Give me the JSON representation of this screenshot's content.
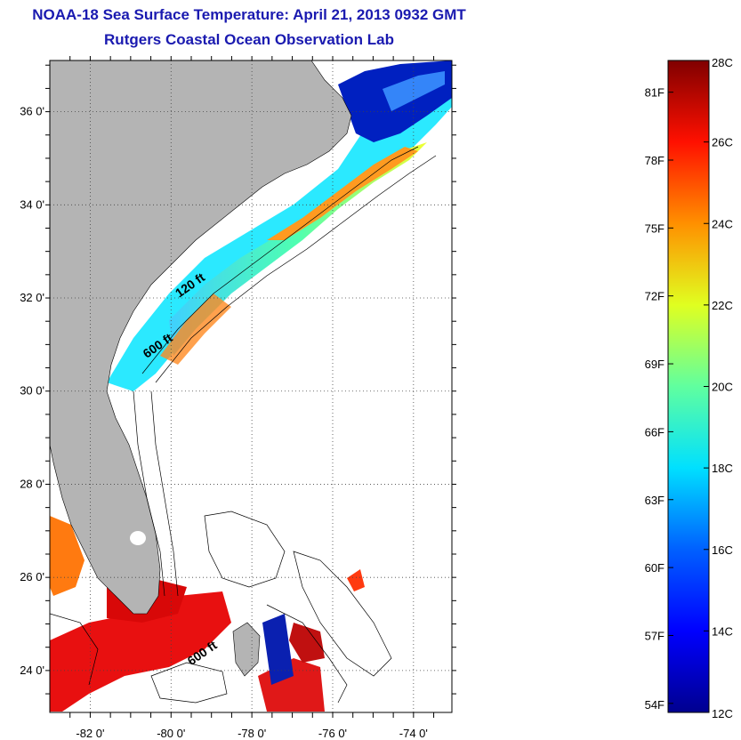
{
  "title": {
    "line1": "NOAA-18 Sea Surface Temperature:  April 21, 2013 0932 GMT",
    "line2": "Rutgers Coastal Ocean Observation Lab"
  },
  "map": {
    "lat_ticks": [
      {
        "value": 36,
        "label": "36 0'"
      },
      {
        "value": 34,
        "label": "34 0'"
      },
      {
        "value": 32,
        "label": "32 0'"
      },
      {
        "value": 30,
        "label": "30 0'"
      },
      {
        "value": 28,
        "label": "28 0'"
      },
      {
        "value": 26,
        "label": "26 0'"
      },
      {
        "value": 24,
        "label": "24 0'"
      }
    ],
    "lon_ticks": [
      {
        "value": -82,
        "label": "-82 0'"
      },
      {
        "value": -80,
        "label": "-80 0'"
      },
      {
        "value": -78,
        "label": "-78 0'"
      },
      {
        "value": -76,
        "label": "-76 0'"
      },
      {
        "value": -74,
        "label": "-74 0'"
      }
    ],
    "contour_labels": [
      {
        "text": "120 ft",
        "lon": -79.8,
        "lat": 32.0
      },
      {
        "text": "600 ft",
        "lon": -80.6,
        "lat": 30.7
      },
      {
        "text": "600 ft",
        "lon": -79.5,
        "lat": 24.1
      }
    ],
    "land_color": "#b4b4b4"
  },
  "colorbar": {
    "celsius_labels": [
      "28C",
      "26C",
      "24C",
      "22C",
      "20C",
      "18C",
      "16C",
      "14C",
      "12C"
    ],
    "fahrenheit_labels": [
      "81F",
      "78F",
      "75F",
      "72F",
      "69F",
      "66F",
      "63F",
      "60F",
      "57F",
      "54F"
    ],
    "min_c": 12,
    "max_c": 28
  }
}
